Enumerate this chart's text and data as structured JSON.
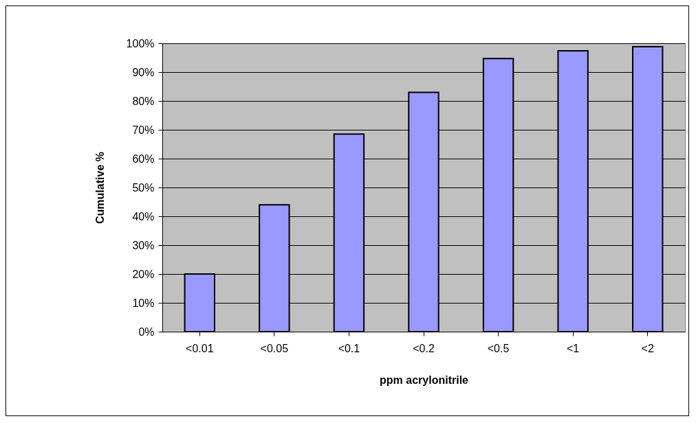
{
  "chart_data": {
    "type": "bar",
    "xlabel": "ppm acrylonitrile",
    "ylabel": "Cumulative %",
    "categories": [
      "<0.01",
      "<0.05",
      "<0.1",
      "<0.2",
      "<0.5",
      "<1",
      "<2"
    ],
    "values": [
      20,
      44,
      68.5,
      83,
      94.7,
      97.4,
      98.8
    ],
    "color": "#9999ff",
    "ylim": [
      0,
      100
    ],
    "yticks": [
      {
        "value": 0,
        "label": "0%"
      },
      {
        "value": 10,
        "label": "10%"
      },
      {
        "value": 20,
        "label": "20%"
      },
      {
        "value": 30,
        "label": "30%"
      },
      {
        "value": 40,
        "label": "40%"
      },
      {
        "value": 50,
        "label": "50%"
      },
      {
        "value": 60,
        "label": "60%"
      },
      {
        "value": 70,
        "label": "70%"
      },
      {
        "value": 80,
        "label": "80%"
      },
      {
        "value": 90,
        "label": "90%"
      },
      {
        "value": 100,
        "label": "100%"
      }
    ],
    "grid": "y"
  }
}
